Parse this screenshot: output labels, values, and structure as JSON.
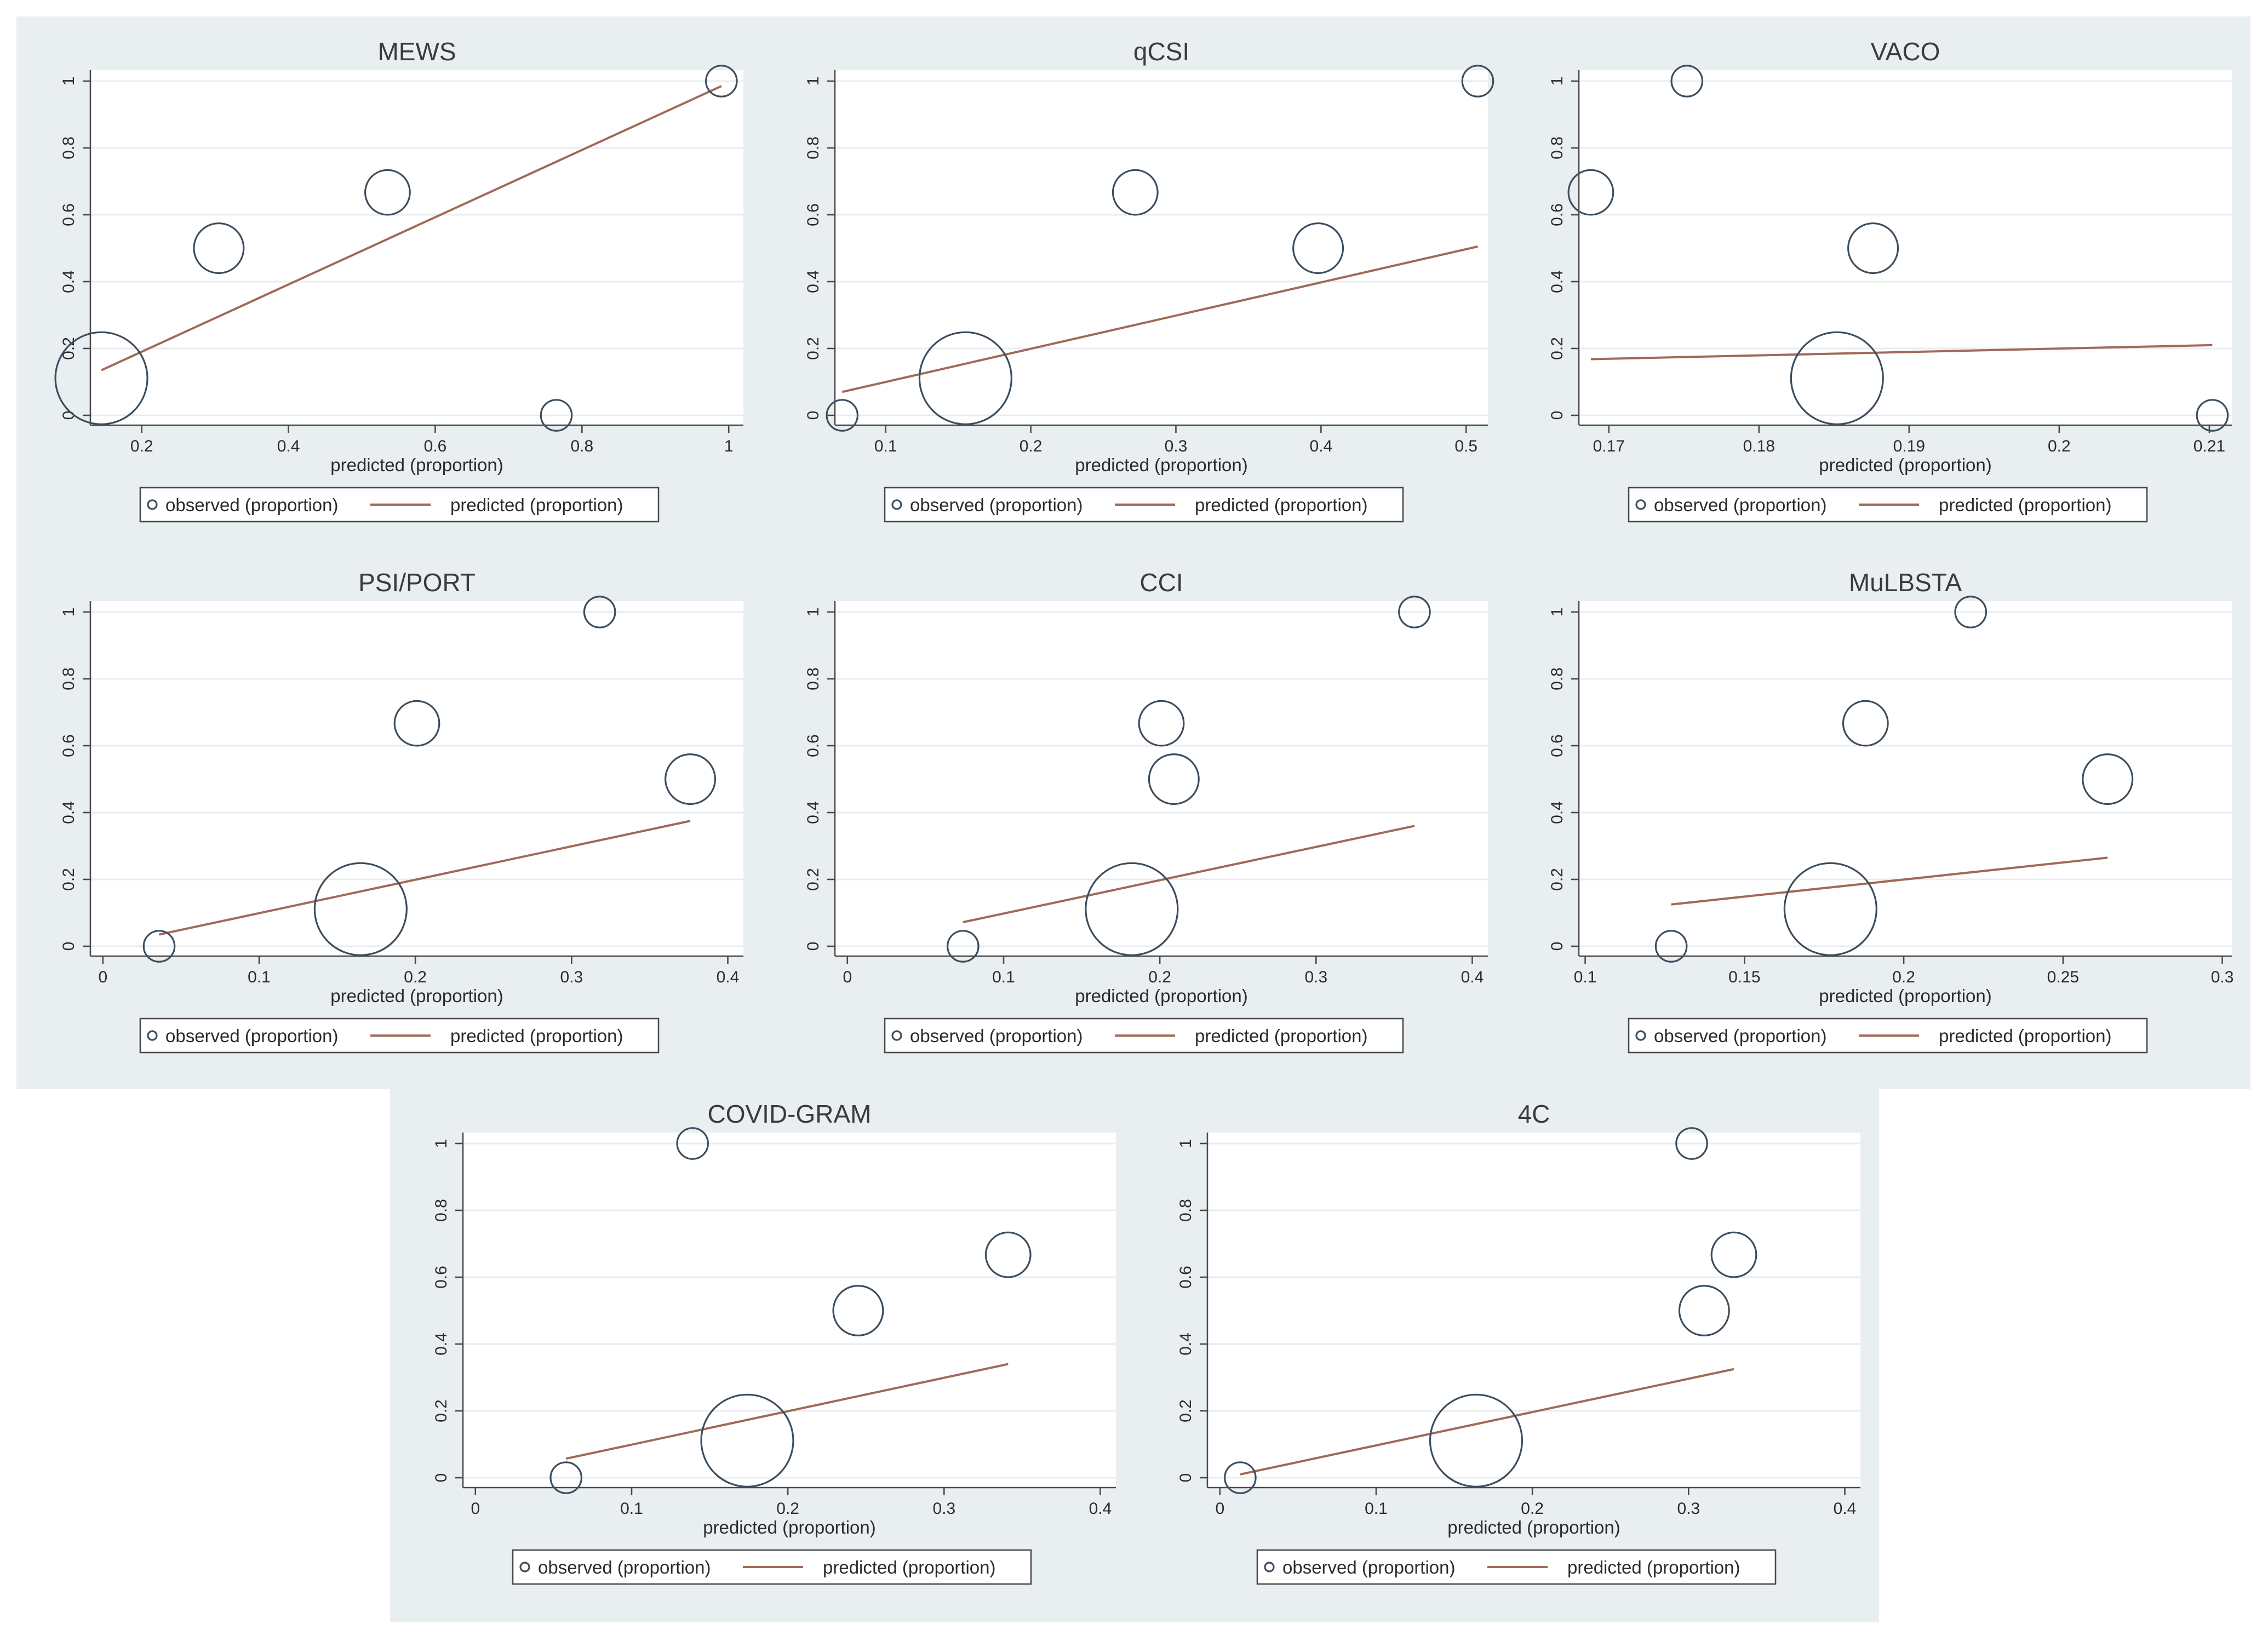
{
  "legend": {
    "observed": "observed (proportion)",
    "predicted": "predicted (proportion)"
  },
  "colors": {
    "background": "#e9eef1",
    "observed_marker": "#3c4d5d",
    "fit_line": "#a06a58"
  },
  "chart_data": [
    {
      "type": "scatter",
      "title": "MEWS",
      "xlabel": "predicted (proportion)",
      "ylabel": "",
      "xlim": [
        0.13,
        1.02
      ],
      "ylim": [
        0,
        1
      ],
      "xticks": [
        0.2,
        0.4,
        0.6,
        0.8,
        1
      ],
      "xticklabels": [
        "0.2",
        "0.4",
        "0.6",
        "0.8",
        "1"
      ],
      "yticks": [
        0,
        0.2,
        0.4,
        0.6,
        0.8,
        1
      ],
      "yticklabels": [
        "0",
        "0.2",
        "0.4",
        "0.6",
        "0.8",
        "1"
      ],
      "points": [
        {
          "x": 0.145,
          "y": 0.111,
          "w": 9
        },
        {
          "x": 0.305,
          "y": 0.5,
          "w": 2
        },
        {
          "x": 0.535,
          "y": 0.667,
          "w": 1.5
        },
        {
          "x": 0.765,
          "y": 0,
          "w": 0.5
        },
        {
          "x": 0.99,
          "y": 1,
          "w": 0.5
        }
      ],
      "fit": [
        [
          0.145,
          0.135
        ],
        [
          0.99,
          0.985
        ]
      ]
    },
    {
      "type": "scatter",
      "title": "qCSI",
      "xlabel": "predicted (proportion)",
      "ylabel": "",
      "xlim": [
        0.065,
        0.515
      ],
      "ylim": [
        0,
        1
      ],
      "xticks": [
        0.1,
        0.2,
        0.3,
        0.4,
        0.5
      ],
      "xticklabels": [
        "0.1",
        "0.2",
        "0.3",
        "0.4",
        "0.5"
      ],
      "yticks": [
        0,
        0.2,
        0.4,
        0.6,
        0.8,
        1
      ],
      "yticklabels": [
        "0",
        "0.2",
        "0.4",
        "0.6",
        "0.8",
        "1"
      ],
      "points": [
        {
          "x": 0.07,
          "y": 0,
          "w": 0.5
        },
        {
          "x": 0.155,
          "y": 0.111,
          "w": 9
        },
        {
          "x": 0.272,
          "y": 0.667,
          "w": 1.5
        },
        {
          "x": 0.398,
          "y": 0.5,
          "w": 2
        },
        {
          "x": 0.508,
          "y": 1,
          "w": 0.5
        }
      ],
      "fit": [
        [
          0.07,
          0.07
        ],
        [
          0.508,
          0.505
        ]
      ]
    },
    {
      "type": "scatter",
      "title": "VACO",
      "xlabel": "predicted (proportion)",
      "ylabel": "",
      "xlim": [
        0.168,
        0.2115
      ],
      "ylim": [
        0,
        1
      ],
      "xticks": [
        0.17,
        0.18,
        0.19,
        0.2,
        0.21
      ],
      "xticklabels": [
        "0.17",
        "0.18",
        "0.19",
        "0.2",
        "0.21"
      ],
      "yticks": [
        0,
        0.2,
        0.4,
        0.6,
        0.8,
        1
      ],
      "yticklabels": [
        "0",
        "0.2",
        "0.4",
        "0.6",
        "0.8",
        "1"
      ],
      "points": [
        {
          "x": 0.1688,
          "y": 0.667,
          "w": 1.5
        },
        {
          "x": 0.1752,
          "y": 1,
          "w": 0.5
        },
        {
          "x": 0.1852,
          "y": 0.111,
          "w": 9
        },
        {
          "x": 0.1876,
          "y": 0.5,
          "w": 2
        },
        {
          "x": 0.2102,
          "y": 0,
          "w": 0.5
        }
      ],
      "fit": [
        [
          0.1688,
          0.168
        ],
        [
          0.2102,
          0.21
        ]
      ]
    },
    {
      "type": "scatter",
      "title": "PSI/PORT",
      "xlabel": "predicted (proportion)",
      "ylabel": "",
      "xlim": [
        -0.008,
        0.41
      ],
      "ylim": [
        0,
        1
      ],
      "xticks": [
        0,
        0.1,
        0.2,
        0.3,
        0.4
      ],
      "xticklabels": [
        "0",
        "0.1",
        "0.2",
        "0.3",
        "0.4"
      ],
      "yticks": [
        0,
        0.2,
        0.4,
        0.6,
        0.8,
        1
      ],
      "yticklabels": [
        "0",
        "0.2",
        "0.4",
        "0.6",
        "0.8",
        "1"
      ],
      "points": [
        {
          "x": 0.036,
          "y": 0,
          "w": 0.5
        },
        {
          "x": 0.165,
          "y": 0.111,
          "w": 9
        },
        {
          "x": 0.201,
          "y": 0.667,
          "w": 1.5
        },
        {
          "x": 0.318,
          "y": 1,
          "w": 0.5
        },
        {
          "x": 0.376,
          "y": 0.5,
          "w": 2
        }
      ],
      "fit": [
        [
          0.036,
          0.035
        ],
        [
          0.376,
          0.375
        ]
      ]
    },
    {
      "type": "scatter",
      "title": "CCI",
      "xlabel": "predicted (proportion)",
      "ylabel": "",
      "xlim": [
        -0.008,
        0.41
      ],
      "ylim": [
        0,
        1
      ],
      "xticks": [
        0,
        0.1,
        0.2,
        0.3,
        0.4
      ],
      "xticklabels": [
        "0",
        "0.1",
        "0.2",
        "0.3",
        "0.4"
      ],
      "yticks": [
        0,
        0.2,
        0.4,
        0.6,
        0.8,
        1
      ],
      "yticklabels": [
        "0",
        "0.2",
        "0.4",
        "0.6",
        "0.8",
        "1"
      ],
      "points": [
        {
          "x": 0.074,
          "y": 0,
          "w": 0.5
        },
        {
          "x": 0.182,
          "y": 0.111,
          "w": 9
        },
        {
          "x": 0.201,
          "y": 0.667,
          "w": 1.5
        },
        {
          "x": 0.209,
          "y": 0.5,
          "w": 2
        },
        {
          "x": 0.363,
          "y": 1,
          "w": 0.5
        }
      ],
      "fit": [
        [
          0.074,
          0.072
        ],
        [
          0.363,
          0.36
        ]
      ]
    },
    {
      "type": "scatter",
      "title": "MuLBSTA",
      "xlabel": "predicted (proportion)",
      "ylabel": "",
      "xlim": [
        0.098,
        0.303
      ],
      "ylim": [
        0,
        1
      ],
      "xticks": [
        0.1,
        0.15,
        0.2,
        0.25,
        0.3
      ],
      "xticklabels": [
        "0.1",
        "0.15",
        "0.2",
        "0.25",
        "0.3"
      ],
      "yticks": [
        0,
        0.2,
        0.4,
        0.6,
        0.8,
        1
      ],
      "yticklabels": [
        "0",
        "0.2",
        "0.4",
        "0.6",
        "0.8",
        "1"
      ],
      "points": [
        {
          "x": 0.127,
          "y": 0,
          "w": 0.5
        },
        {
          "x": 0.177,
          "y": 0.111,
          "w": 9
        },
        {
          "x": 0.188,
          "y": 0.667,
          "w": 1.5
        },
        {
          "x": 0.221,
          "y": 1,
          "w": 0.5
        },
        {
          "x": 0.264,
          "y": 0.5,
          "w": 2
        }
      ],
      "fit": [
        [
          0.127,
          0.125
        ],
        [
          0.264,
          0.265
        ]
      ]
    },
    {
      "type": "scatter",
      "title": "COVID-GRAM",
      "xlabel": "predicted (proportion)",
      "ylabel": "",
      "xlim": [
        -0.008,
        0.41
      ],
      "ylim": [
        0,
        1
      ],
      "xticks": [
        0,
        0.1,
        0.2,
        0.3,
        0.4
      ],
      "xticklabels": [
        "0",
        "0.1",
        "0.2",
        "0.3",
        "0.4"
      ],
      "yticks": [
        0,
        0.2,
        0.4,
        0.6,
        0.8,
        1
      ],
      "yticklabels": [
        "0",
        "0.2",
        "0.4",
        "0.6",
        "0.8",
        "1"
      ],
      "points": [
        {
          "x": 0.058,
          "y": 0,
          "w": 0.5
        },
        {
          "x": 0.139,
          "y": 1,
          "w": 0.5
        },
        {
          "x": 0.174,
          "y": 0.111,
          "w": 9
        },
        {
          "x": 0.245,
          "y": 0.5,
          "w": 2
        },
        {
          "x": 0.341,
          "y": 0.667,
          "w": 1.5
        }
      ],
      "fit": [
        [
          0.058,
          0.057
        ],
        [
          0.341,
          0.34
        ]
      ]
    },
    {
      "type": "scatter",
      "title": "4C",
      "xlabel": "predicted (proportion)",
      "ylabel": "",
      "xlim": [
        -0.008,
        0.41
      ],
      "ylim": [
        0,
        1
      ],
      "xticks": [
        0,
        0.1,
        0.2,
        0.3,
        0.4
      ],
      "xticklabels": [
        "0",
        "0.1",
        "0.2",
        "0.3",
        "0.4"
      ],
      "yticks": [
        0,
        0.2,
        0.4,
        0.6,
        0.8,
        1
      ],
      "yticklabels": [
        "0",
        "0.2",
        "0.4",
        "0.6",
        "0.8",
        "1"
      ],
      "points": [
        {
          "x": 0.013,
          "y": 0,
          "w": 0.5
        },
        {
          "x": 0.164,
          "y": 0.111,
          "w": 9
        },
        {
          "x": 0.302,
          "y": 1,
          "w": 0.5
        },
        {
          "x": 0.31,
          "y": 0.5,
          "w": 2
        },
        {
          "x": 0.329,
          "y": 0.667,
          "w": 1.5
        }
      ],
      "fit": [
        [
          0.013,
          0.01
        ],
        [
          0.329,
          0.325
        ]
      ]
    }
  ]
}
